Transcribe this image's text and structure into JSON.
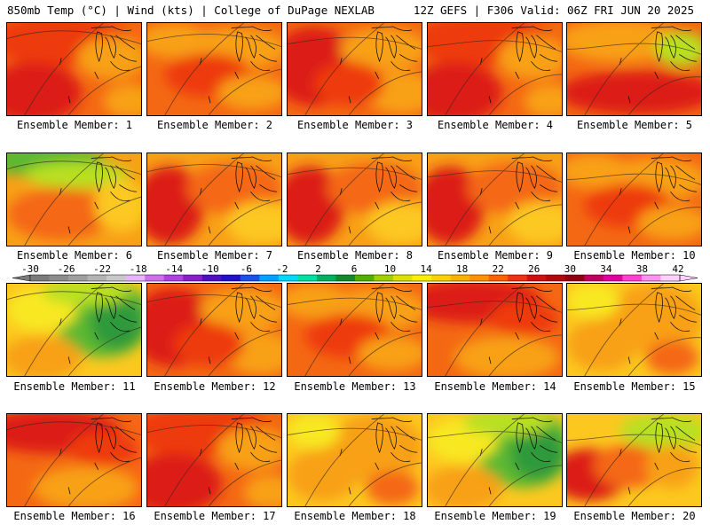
{
  "header": {
    "left": "850mb Temp (°C) | Wind (kts) | College of DuPage NEXLAB",
    "right": "12Z GEFS | F306 Valid: 06Z FRI JUN 20 2025"
  },
  "panels": [
    {
      "caption": "Ensemble Member: 1",
      "scheme": "warm-hot-sw"
    },
    {
      "caption": "Ensemble Member: 2",
      "scheme": "warm"
    },
    {
      "caption": "Ensemble Member: 3",
      "scheme": "hot-west"
    },
    {
      "caption": "Ensemble Member: 4",
      "scheme": "warm-hot-sw"
    },
    {
      "caption": "Ensemble Member: 5",
      "scheme": "hot-band"
    },
    {
      "caption": "Ensemble Member: 6",
      "scheme": "mild-north"
    },
    {
      "caption": "Ensemble Member: 7",
      "scheme": "warm-hot-west"
    },
    {
      "caption": "Ensemble Member: 8",
      "scheme": "warm-hot-west"
    },
    {
      "caption": "Ensemble Member: 9",
      "scheme": "warm-hot-west"
    },
    {
      "caption": "Ensemble Member: 10",
      "scheme": "warm"
    },
    {
      "caption": "Ensemble Member: 11",
      "scheme": "cool-green"
    },
    {
      "caption": "Ensemble Member: 12",
      "scheme": "hot-west"
    },
    {
      "caption": "Ensemble Member: 13",
      "scheme": "warm"
    },
    {
      "caption": "Ensemble Member: 14",
      "scheme": "hot-north"
    },
    {
      "caption": "Ensemble Member: 15",
      "scheme": "mild"
    },
    {
      "caption": "Ensemble Member: 16",
      "scheme": "hot-north"
    },
    {
      "caption": "Ensemble Member: 17",
      "scheme": "warm-hot-sw"
    },
    {
      "caption": "Ensemble Member: 18",
      "scheme": "mild"
    },
    {
      "caption": "Ensemble Member: 19",
      "scheme": "cool-green"
    },
    {
      "caption": "Ensemble Member: 20",
      "scheme": "mild-hot-sw"
    }
  ],
  "colorbar": {
    "labels": [
      "-30",
      "-26",
      "-22",
      "-18",
      "-14",
      "-10",
      "-6",
      "-2",
      "2",
      "6",
      "10",
      "14",
      "18",
      "22",
      "26",
      "30",
      "34",
      "38",
      "42"
    ],
    "colors": [
      "#7a7a7a",
      "#8c8c8c",
      "#9e9e9e",
      "#b4b4b4",
      "#c8c8c8",
      "#e8b4ff",
      "#d06ef0",
      "#b040e0",
      "#8c1ec8",
      "#5010c0",
      "#2010c8",
      "#1850e8",
      "#00a0ff",
      "#00d8ff",
      "#00e0a0",
      "#00b060",
      "#108a28",
      "#50b000",
      "#a0d000",
      "#e0e000",
      "#ffee00",
      "#ffd000",
      "#ffb000",
      "#ff9000",
      "#ff6000",
      "#f03010",
      "#d01010",
      "#b00808",
      "#900010",
      "#c00060",
      "#e000a0",
      "#ff40d0",
      "#ff90f0",
      "#ffd0ff"
    ]
  },
  "palette": {
    "hot": "#dc1c14",
    "red": "#ee3a10",
    "orange": "#f46814",
    "amber": "#f8a018",
    "gold": "#fcc820",
    "yellow": "#f8e820",
    "lime": "#b8e020",
    "green": "#5cb830",
    "darkgreen": "#2e9a3a"
  }
}
